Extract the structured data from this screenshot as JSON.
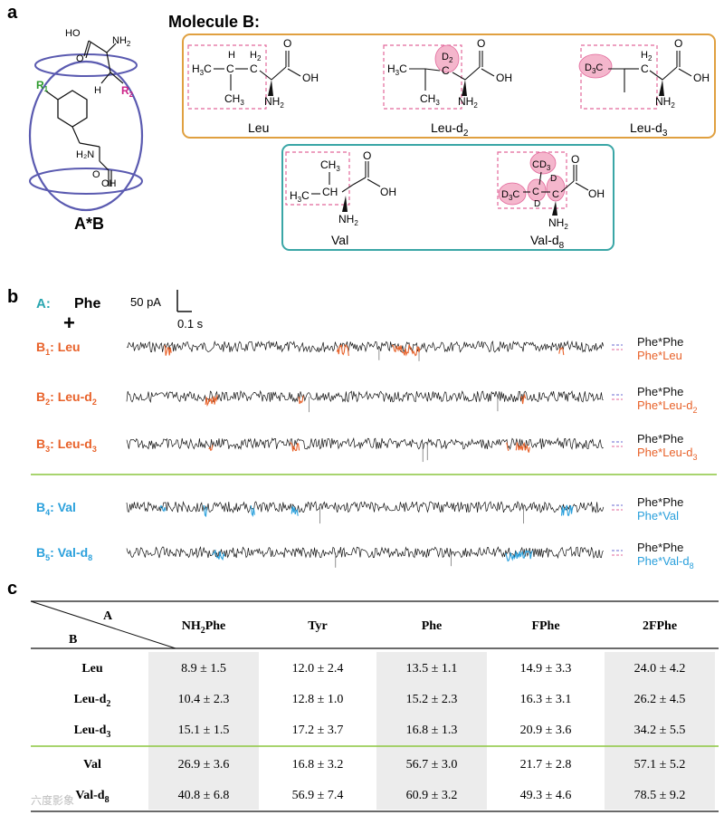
{
  "panel_a": {
    "label": "a",
    "molecule_b_title": "Molecule B:",
    "complex_label": "A*B",
    "host_guest": {
      "ho": "HO",
      "o": "O",
      "nh2": "NH",
      "h": "H",
      "r1": "R",
      "r1_sub": "1",
      "r2": "R",
      "r2_sub": "2",
      "h2n": "H₂N",
      "o2": "O",
      "oh": "OH"
    },
    "leucines": [
      {
        "name": "Leu",
        "sub": ""
      },
      {
        "name": "Leu-d",
        "sub": "2"
      },
      {
        "name": "Leu-d",
        "sub": "3"
      }
    ],
    "valines": [
      {
        "name": "Val",
        "sub": ""
      },
      {
        "name": "Val-d",
        "sub": "8"
      }
    ],
    "colors": {
      "orange_box": "#e0a040",
      "teal_box": "#3aa6a6",
      "pink": "#f4b6cc",
      "pink_dash": "#e2679a",
      "ring": "#5a5ab0",
      "r1": "#2c9a2c",
      "r2": "#cc2288"
    }
  },
  "panel_b": {
    "label": "b",
    "a_label": "A:",
    "a_value": "Phe",
    "plus": "+",
    "scale_current": "50 pA",
    "scale_time": "0.1 s",
    "traces": [
      {
        "label": "B",
        "sub": "1",
        "name": "Leu",
        "name_sub": "",
        "legend_top": "Phe*Phe",
        "legend_bottom": "Phe*Leu",
        "legend_sub": "",
        "color": "#e8622a"
      },
      {
        "label": "B",
        "sub": "2",
        "name": "Leu-d",
        "name_sub": "2",
        "legend_top": "Phe*Phe",
        "legend_bottom": "Phe*Leu-d",
        "legend_sub": "2",
        "color": "#e8622a"
      },
      {
        "label": "B",
        "sub": "3",
        "name": "Leu-d",
        "name_sub": "3",
        "legend_top": "Phe*Phe",
        "legend_bottom": "Phe*Leu-d",
        "legend_sub": "3",
        "color": "#e8622a"
      },
      {
        "label": "B",
        "sub": "4",
        "name": "Val",
        "name_sub": "",
        "legend_top": "Phe*Phe",
        "legend_bottom": "Phe*Val",
        "legend_sub": "",
        "color": "#2aa0dc"
      },
      {
        "label": "B",
        "sub": "5",
        "name": "Val-d",
        "name_sub": "8",
        "legend_top": "Phe*Phe",
        "legend_bottom": "Phe*Val-d",
        "legend_sub": "8",
        "color": "#2aa0dc"
      }
    ],
    "colors": {
      "teal_label": "#2aa6b0",
      "orange_label": "#e8622a",
      "blue_label": "#2aa0dc",
      "trace": "#111111",
      "separator": "#8cc63f"
    }
  },
  "panel_c": {
    "label": "c",
    "corner_a": "A",
    "corner_b": "B",
    "columns": [
      {
        "text": "NH",
        "sub": "2",
        "rest": "Phe"
      },
      {
        "text": "Tyr",
        "sub": "",
        "rest": ""
      },
      {
        "text": "Phe",
        "sub": "",
        "rest": ""
      },
      {
        "text": "FPhe",
        "sub": "",
        "rest": ""
      },
      {
        "text": "2FPhe",
        "sub": "",
        "rest": ""
      }
    ],
    "rows": [
      {
        "label": "Leu",
        "sub": "",
        "values": [
          "8.9 ± 1.5",
          "12.0 ± 2.4",
          "13.5 ± 1.1",
          "14.9 ± 3.3",
          "24.0 ± 4.2"
        ]
      },
      {
        "label": "Leu-d",
        "sub": "2",
        "values": [
          "10.4 ± 2.3",
          "12.8 ± 1.0",
          "15.2 ± 2.3",
          "16.3 ± 3.1",
          "26.2 ± 4.5"
        ]
      },
      {
        "label": "Leu-d",
        "sub": "3",
        "values": [
          "15.1 ± 1.5",
          "17.2 ± 3.7",
          "16.8 ± 1.3",
          "20.9 ± 3.6",
          "34.2 ± 5.5"
        ]
      },
      {
        "label": "Val",
        "sub": "",
        "values": [
          "26.9 ± 3.6",
          "16.8 ± 3.2",
          "56.7 ± 3.0",
          "21.7 ± 2.8",
          "57.1 ± 5.2"
        ]
      },
      {
        "label": "Val-d",
        "sub": "8",
        "values": [
          "40.8 ± 6.8",
          "56.9 ± 7.4",
          "60.9 ± 3.2",
          "49.3 ± 4.6",
          "78.5 ± 9.2"
        ]
      }
    ],
    "colors": {
      "shade": "#ececec",
      "separator": "#8cc63f"
    }
  },
  "watermark": "六度影象"
}
